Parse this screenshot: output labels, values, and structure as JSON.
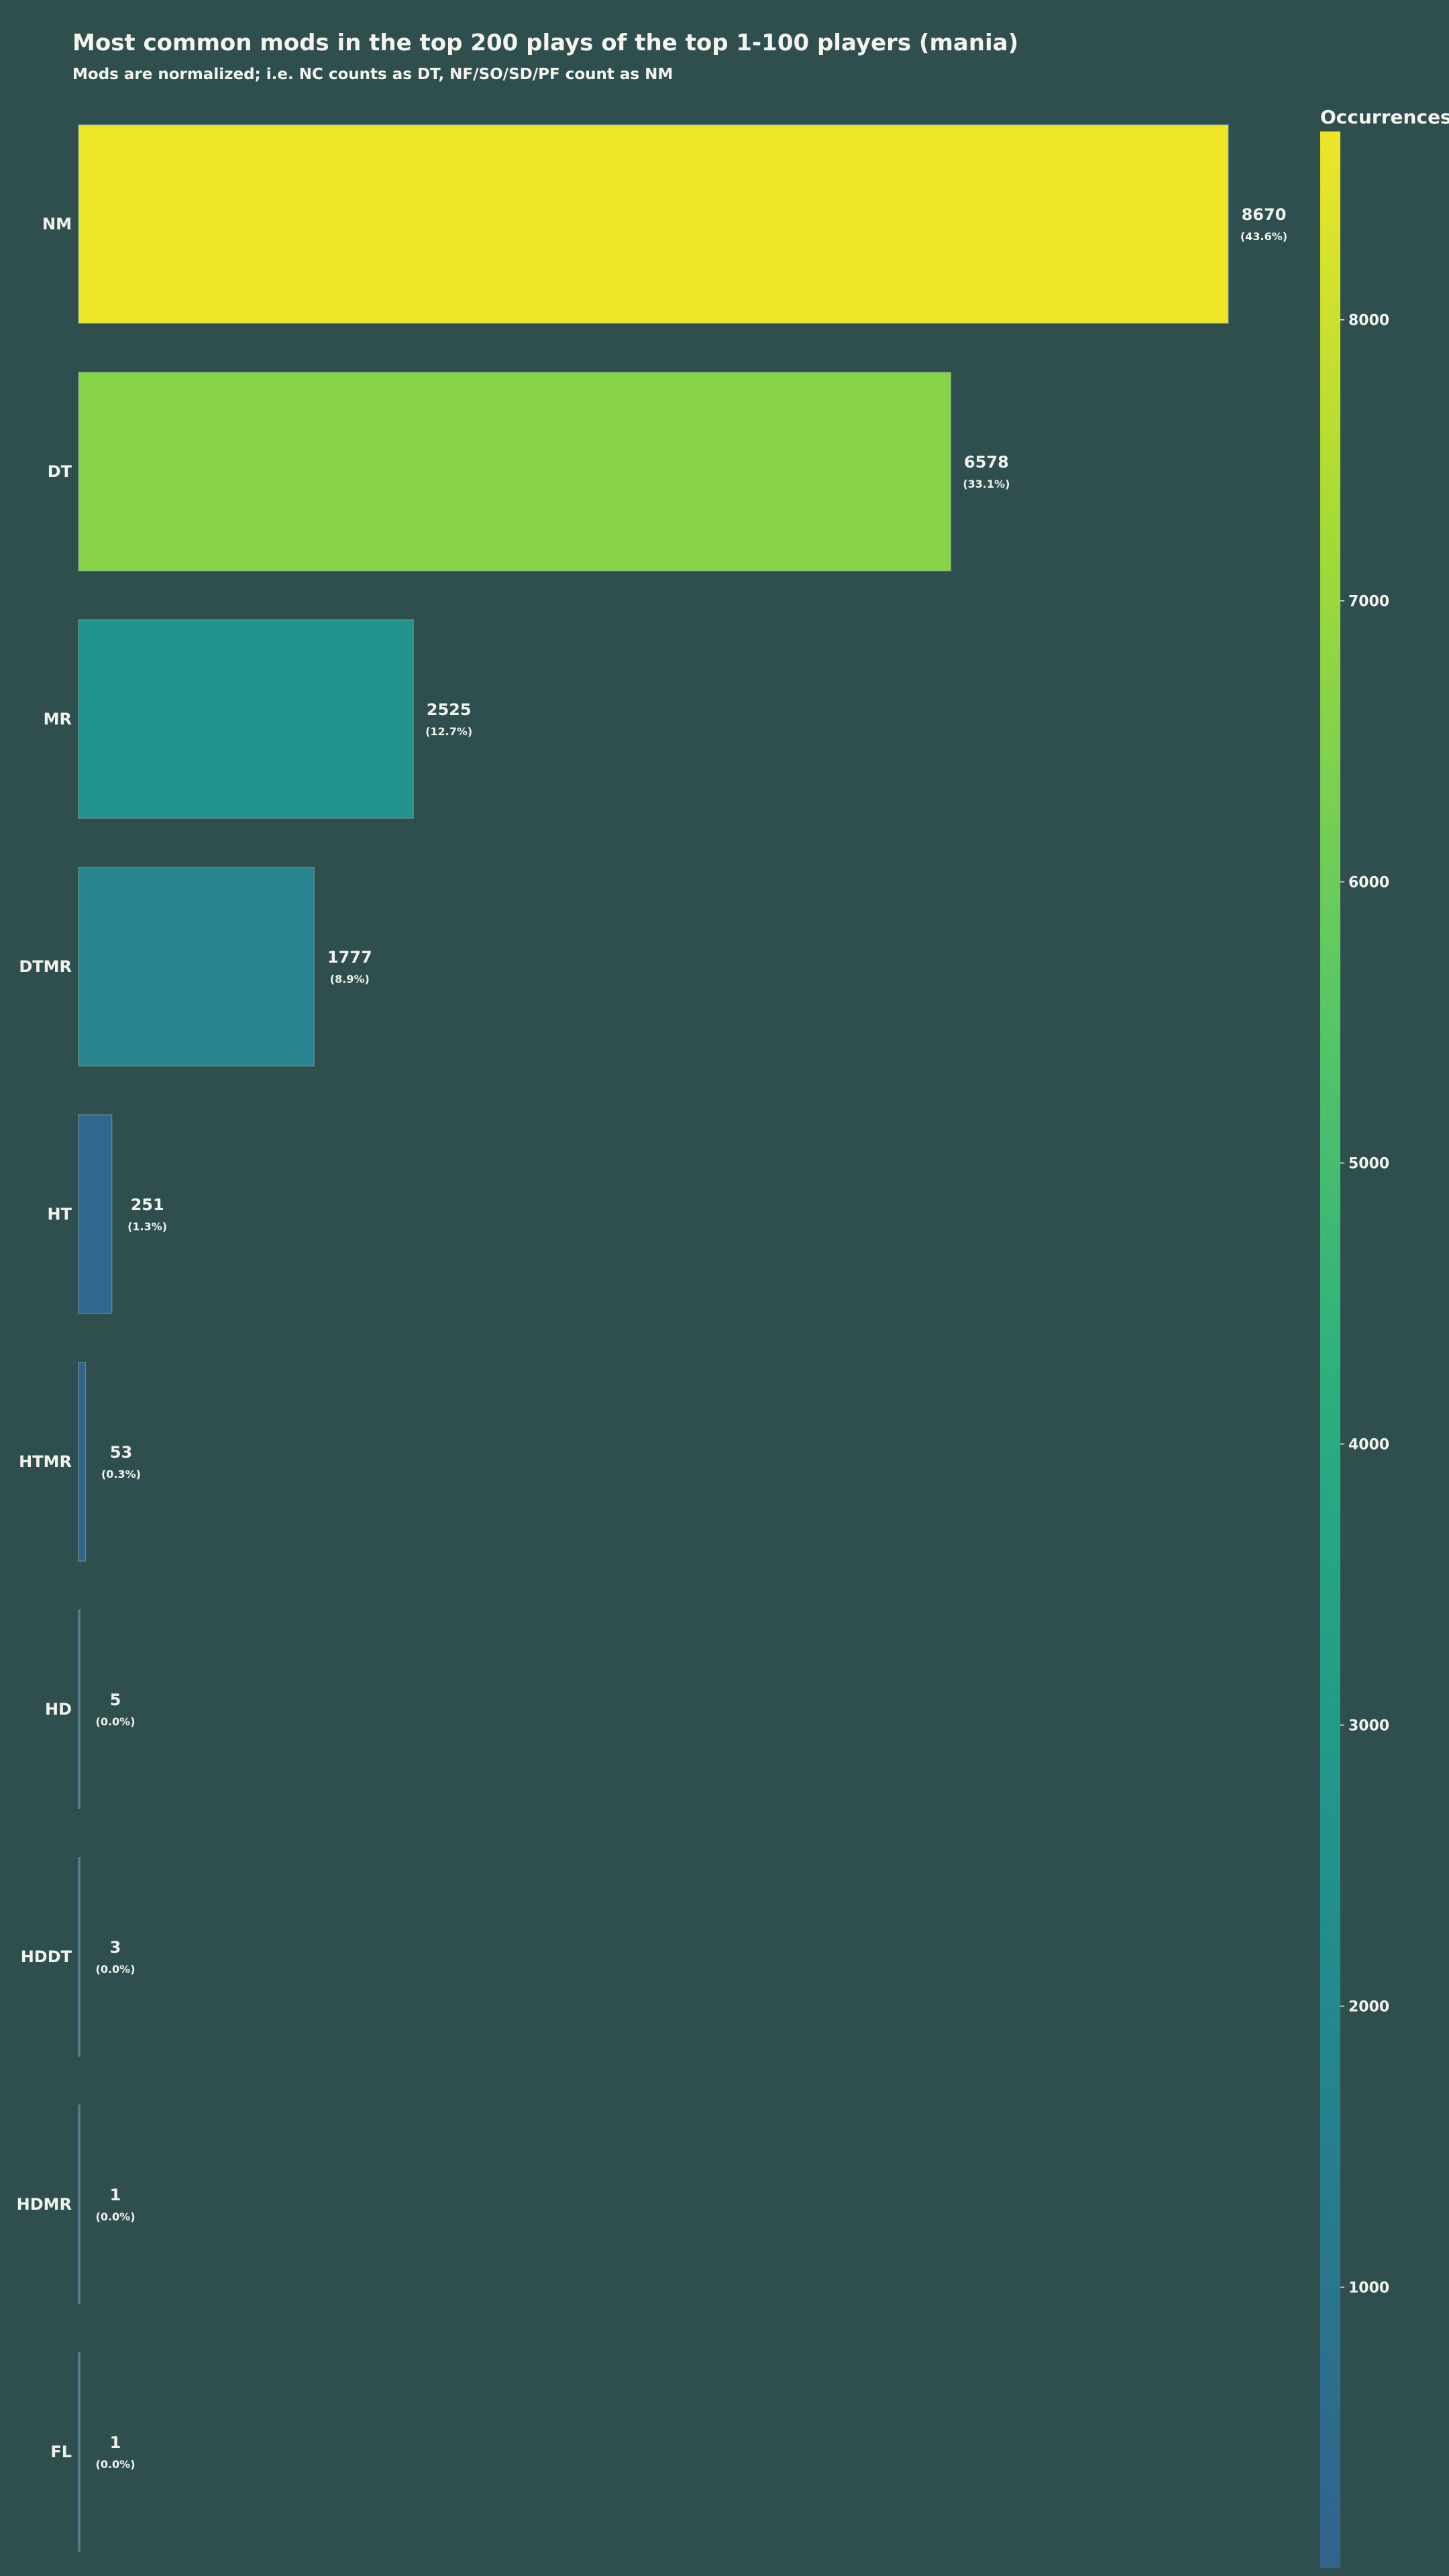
{
  "title": "Most common mods in the top 200 plays of the top 1-100 players (mania)",
  "subtitle": "Mods are normalized; i.e. NC counts as DT, NF/SO/SD/PF count as NM",
  "chart_data": {
    "type": "bar",
    "orientation": "horizontal",
    "categories": [
      "NM",
      "DT",
      "MR",
      "DTMR",
      "HT",
      "HTMR",
      "HD",
      "HDDT",
      "HDMR",
      "FL"
    ],
    "values": [
      8670,
      6578,
      2525,
      1777,
      251,
      53,
      5,
      3,
      1,
      1
    ],
    "percent_labels": [
      "(43.6%)",
      "(33.1%)",
      "(12.7%)",
      "(8.9%)",
      "(1.3%)",
      "(0.3%)",
      "(0.0%)",
      "(0.0%)",
      "(0.0%)",
      "(0.0%)"
    ],
    "xlim": [
      0,
      8670
    ],
    "grid": false,
    "colormap": "viridis",
    "colorbar": {
      "label": "Occurrences",
      "range": [
        1,
        8670
      ],
      "ticks": [
        1000,
        2000,
        3000,
        4000,
        5000,
        6000,
        7000,
        8000
      ]
    }
  },
  "colors": {
    "background": "#2f4f4f",
    "text": "#f2f2ec"
  }
}
